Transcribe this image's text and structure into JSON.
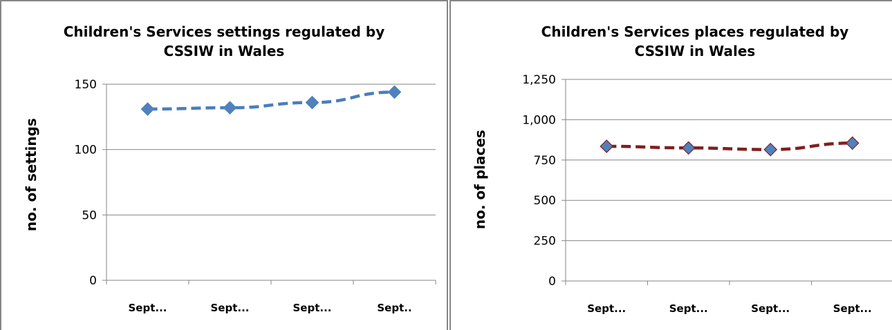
{
  "chart_data": [
    {
      "type": "line",
      "title_lines": [
        "Children's Services settings regulated by",
        "CSSIW in Wales"
      ],
      "xlabel": "",
      "ylabel": "no. of settings",
      "categories": [
        "Sept...",
        "Sept...",
        "Sept...",
        "Sept.."
      ],
      "series": [
        {
          "values": [
            131,
            132,
            136,
            144
          ]
        }
      ],
      "ylim": [
        0,
        150
      ],
      "yticks": [
        0,
        50,
        100,
        150
      ],
      "ytick_labels": [
        "0",
        "50",
        "100",
        "150"
      ],
      "grid": true,
      "line_color": "#4a7ebb",
      "marker_color": "#4f81bd",
      "line_style": "dashed",
      "marker": "diamond"
    },
    {
      "type": "line",
      "title_lines": [
        "Children's Services places regulated by",
        "CSSIW in Wales"
      ],
      "xlabel": "",
      "ylabel": "no. of places",
      "categories": [
        "Sept...",
        "Sept...",
        "Sept...",
        "Sept..."
      ],
      "series": [
        {
          "values": [
            835,
            825,
            815,
            855
          ]
        }
      ],
      "ylim": [
        0,
        1250
      ],
      "yticks": [
        0,
        250,
        500,
        750,
        1000,
        1250
      ],
      "ytick_labels": [
        "0",
        "250",
        "500",
        "750",
        "1,000",
        "1,250"
      ],
      "grid": true,
      "line_color": "#7f1f1f",
      "marker_color": "#4f81bd",
      "line_style": "dashed",
      "marker": "diamond"
    }
  ]
}
